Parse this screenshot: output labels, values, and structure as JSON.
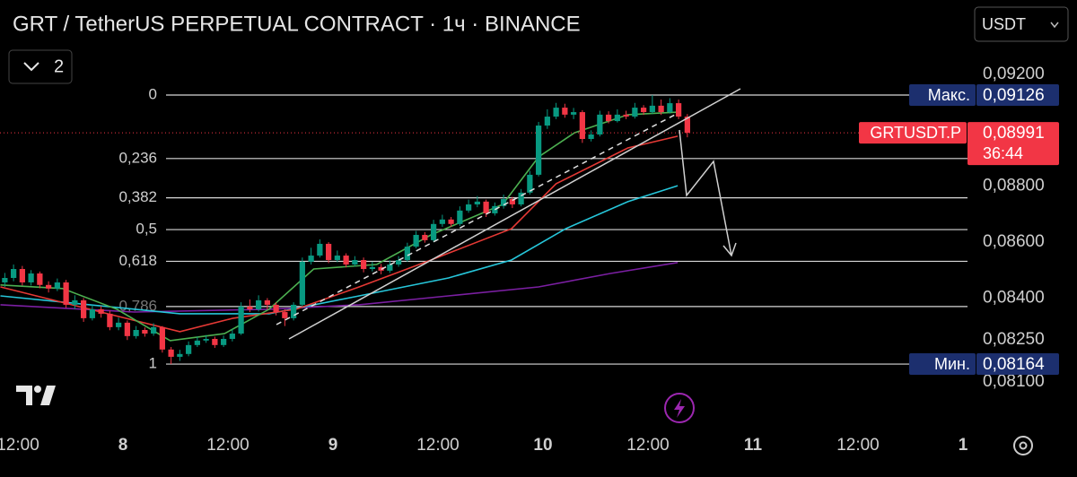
{
  "chart_data": {
    "type": "candlestick",
    "title": "GRT / TetherUS PERPETUAL CONTRACT · 1ч · BINANCE",
    "up_color": "#089981",
    "down_color": "#f23645",
    "xlim": [
      -14.05,
      96.72
    ],
    "ylim": [
      0.07991,
      0.09466
    ],
    "xticks": [
      {
        "value": -12,
        "label": "12:00"
      },
      {
        "value": 0,
        "label": "8"
      },
      {
        "value": 12,
        "label": "12:00"
      },
      {
        "value": 24,
        "label": "9"
      },
      {
        "value": 36,
        "label": "12:00"
      },
      {
        "value": 48,
        "label": "10"
      },
      {
        "value": 60,
        "label": "12:00"
      },
      {
        "value": 72,
        "label": "11"
      },
      {
        "value": 84,
        "label": "12:00"
      },
      {
        "value": 96,
        "label": "1"
      }
    ],
    "yticks": [
      {
        "value": 0.092,
        "label": "0,09200"
      },
      {
        "value": 0.088,
        "label": "0,08800"
      },
      {
        "value": 0.086,
        "label": "0,08600"
      },
      {
        "value": 0.084,
        "label": "0,08400"
      },
      {
        "value": 0.0825,
        "label": "0,08250"
      },
      {
        "value": 0.081,
        "label": "0,08100"
      }
    ],
    "x": [
      -14,
      -13,
      -12,
      -11,
      -10,
      -9,
      -8,
      -7,
      -6,
      -5,
      -4,
      -3,
      -2,
      -1,
      0,
      1,
      2,
      3,
      4,
      5,
      6,
      7,
      8,
      9,
      10,
      11,
      12,
      13,
      14,
      15,
      16,
      17,
      18,
      19,
      20,
      21,
      22,
      23,
      24,
      25,
      26,
      27,
      28,
      29,
      30,
      31,
      32,
      33,
      34,
      35,
      36,
      37,
      38,
      39,
      40,
      41,
      42,
      43,
      44,
      45,
      46,
      47,
      48,
      49,
      50,
      51,
      52,
      53,
      54,
      55,
      56,
      57,
      58,
      59,
      60,
      61,
      62,
      63,
      64
    ],
    "open": [
      0.08456,
      0.08472,
      0.08504,
      0.08456,
      0.08488,
      0.08447,
      0.08434,
      0.08456,
      0.08376,
      0.08392,
      0.08328,
      0.0836,
      0.08344,
      0.08296,
      0.08312,
      0.08264,
      0.08286,
      0.08273,
      0.08296,
      0.08216,
      0.0819,
      0.082,
      0.08232,
      0.08248,
      0.08254,
      0.08232,
      0.08254,
      0.08273,
      0.0837,
      0.0836,
      0.08392,
      0.08376,
      0.0835,
      0.08328,
      0.08376,
      0.0853,
      0.08552,
      0.08594,
      0.08536,
      0.08552,
      0.0852,
      0.08536,
      0.08504,
      0.08511,
      0.08498,
      0.0852,
      0.08536,
      0.08584,
      0.08626,
      0.08607,
      0.08665,
      0.08681,
      0.08665,
      0.08713,
      0.08735,
      0.08745,
      0.08703,
      0.08729,
      0.08754,
      0.08735,
      0.08777,
      0.08841,
      0.09017,
      0.09049,
      0.09081,
      0.09056,
      0.09065,
      0.08969,
      0.08985,
      0.09056,
      0.09033,
      0.09056,
      0.09049,
      0.09081,
      0.09065,
      0.09088,
      0.09065,
      0.09097,
      0.09049
    ],
    "high": [
      0.0849,
      0.0852,
      0.08515,
      0.085,
      0.08495,
      0.0846,
      0.0847,
      0.08465,
      0.0841,
      0.084,
      0.08375,
      0.08372,
      0.08355,
      0.0833,
      0.0832,
      0.083,
      0.08295,
      0.0831,
      0.083,
      0.08225,
      0.08215,
      0.08245,
      0.08262,
      0.08268,
      0.08262,
      0.08266,
      0.0829,
      0.08385,
      0.08395,
      0.0841,
      0.084,
      0.08385,
      0.0836,
      0.08385,
      0.08545,
      0.0858,
      0.0861,
      0.086,
      0.0857,
      0.0856,
      0.0855,
      0.08545,
      0.0853,
      0.08522,
      0.08535,
      0.0855,
      0.08598,
      0.0864,
      0.08636,
      0.0868,
      0.08698,
      0.0869,
      0.08728,
      0.08752,
      0.08765,
      0.08752,
      0.08742,
      0.0877,
      0.08762,
      0.0879,
      0.08855,
      0.0903,
      0.09075,
      0.09098,
      0.09095,
      0.0908,
      0.09072,
      0.09,
      0.0907,
      0.09068,
      0.09075,
      0.0907,
      0.09098,
      0.0909,
      0.09126,
      0.0911,
      0.09115,
      0.0911,
      0.09058
    ],
    "low": [
      0.0844,
      0.0846,
      0.08445,
      0.08445,
      0.08435,
      0.0842,
      0.08425,
      0.08365,
      0.0836,
      0.08315,
      0.0832,
      0.0833,
      0.08285,
      0.08285,
      0.0825,
      0.08255,
      0.08262,
      0.08265,
      0.08205,
      0.08164,
      0.08175,
      0.08192,
      0.08225,
      0.0824,
      0.08222,
      0.08225,
      0.08245,
      0.08268,
      0.0835,
      0.08352,
      0.0836,
      0.08338,
      0.083,
      0.0832,
      0.0837,
      0.0852,
      0.08545,
      0.08525,
      0.08528,
      0.0851,
      0.08512,
      0.08492,
      0.08495,
      0.08485,
      0.0849,
      0.08512,
      0.0853,
      0.08578,
      0.08598,
      0.086,
      0.08655,
      0.08655,
      0.08658,
      0.08705,
      0.08725,
      0.0869,
      0.08695,
      0.0872,
      0.08722,
      0.08728,
      0.0877,
      0.08835,
      0.09005,
      0.0904,
      0.09045,
      0.0904,
      0.08955,
      0.0896,
      0.08978,
      0.09025,
      0.09028,
      0.0904,
      0.09042,
      0.09055,
      0.09058,
      0.09055,
      0.0906,
      0.0904,
      0.08975
    ],
    "close": [
      0.08472,
      0.08504,
      0.08456,
      0.08488,
      0.08447,
      0.08434,
      0.08456,
      0.08376,
      0.08392,
      0.08328,
      0.0836,
      0.08344,
      0.08296,
      0.08312,
      0.08264,
      0.08286,
      0.08273,
      0.08296,
      0.08216,
      0.0819,
      0.082,
      0.08232,
      0.08248,
      0.08254,
      0.08232,
      0.08254,
      0.08273,
      0.0837,
      0.0836,
      0.08392,
      0.08376,
      0.0835,
      0.08328,
      0.08376,
      0.0853,
      0.08552,
      0.08594,
      0.08536,
      0.08552,
      0.0852,
      0.08536,
      0.08504,
      0.08511,
      0.08498,
      0.0852,
      0.08536,
      0.08584,
      0.08626,
      0.08607,
      0.08665,
      0.08681,
      0.08665,
      0.08713,
      0.08735,
      0.08745,
      0.08703,
      0.08729,
      0.08754,
      0.08735,
      0.08777,
      0.08841,
      0.09017,
      0.09049,
      0.09081,
      0.09056,
      0.09065,
      0.08969,
      0.08985,
      0.09056,
      0.09033,
      0.09056,
      0.09049,
      0.09081,
      0.09065,
      0.09088,
      0.09065,
      0.09097,
      0.09049,
      0.08991
    ],
    "lines": [
      {
        "color": "#7b1fa2",
        "x": [
          -14,
          1.3,
          16.7,
          27,
          37.2,
          47.5,
          55.7,
          63.4
        ],
        "values": [
          0.08376,
          0.0835,
          0.0836,
          0.08376,
          0.08408,
          0.0844,
          0.08488,
          0.08527
        ]
      },
      {
        "color": "#26c6da",
        "x": [
          -14,
          -3.8,
          6.5,
          16.7,
          27,
          37.2,
          44.4,
          50.6,
          57.7,
          63.4
        ],
        "values": [
          0.08408,
          0.08376,
          0.08344,
          0.08344,
          0.08408,
          0.08472,
          0.08536,
          0.08648,
          0.08745,
          0.08802
        ]
      },
      {
        "color": "#e53935",
        "x": [
          -14,
          -3.8,
          6.5,
          12.6,
          19.8,
          27,
          35.2,
          44.4,
          49.5,
          57.7,
          63.4
        ],
        "values": [
          0.0844,
          0.0836,
          0.0828,
          0.08328,
          0.0836,
          0.0844,
          0.08536,
          0.08648,
          0.08809,
          0.08937,
          0.08979
        ]
      },
      {
        "color": "#4caf50",
        "x": [
          -14,
          -6.9,
          -0.7,
          5.4,
          11.6,
          16.7,
          21.8,
          29,
          35.2,
          43.4,
          47.5,
          51.6,
          57.7,
          63.4
        ],
        "values": [
          0.08447,
          0.08434,
          0.0836,
          0.08248,
          0.08273,
          0.0836,
          0.08504,
          0.0852,
          0.08626,
          0.08735,
          0.08905,
          0.08991,
          0.09056,
          0.09065
        ]
      }
    ],
    "fib": {
      "high": 0.09126,
      "low": 0.08164,
      "levels": [
        {
          "value": 0,
          "label": "0"
        },
        {
          "value": 0.236,
          "label": "0,236"
        },
        {
          "value": 0.382,
          "label": "0,382"
        },
        {
          "value": 0.5,
          "label": "0,5"
        },
        {
          "value": 0.618,
          "label": "0,618"
        },
        {
          "value": 0.786,
          "label": "0,786"
        },
        {
          "value": 1,
          "label": "1"
        }
      ]
    },
    "max": {
      "label": "Макс.",
      "value": 0.09126,
      "value_label": "0,09126"
    },
    "min": {
      "label": "Мин.",
      "value": 0.08164,
      "value_label": "0,08164"
    },
    "last": {
      "label": "GRTUSDT.P",
      "value": 0.08991,
      "value_label": "0,08991",
      "countdown": "36:44"
    }
  },
  "ui": {
    "currency": "USDT",
    "pane_count": 2
  }
}
